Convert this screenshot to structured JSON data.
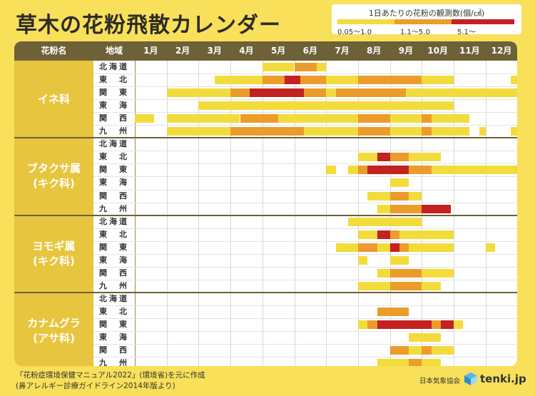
{
  "title": "草木の花粉飛散カレンダー",
  "legend": {
    "title": "1日あたりの花粉の観測数(個/㎠)",
    "levels": [
      {
        "label": "0.05～1.0",
        "color": "#f2dc3c"
      },
      {
        "label": "1.1～5.0",
        "color": "#eb9c2b"
      },
      {
        "label": "5.1～",
        "color": "#c42121"
      }
    ]
  },
  "headers": {
    "pollen": "花粉名",
    "region": "地域",
    "months": [
      "1月",
      "2月",
      "3月",
      "4月",
      "5月",
      "6月",
      "7月",
      "8月",
      "9月",
      "10月",
      "11月",
      "12月"
    ]
  },
  "footnote": {
    "line1": "「花粉症環境保健マニュアル2022」(環境省)を元に作成",
    "line2": "(鼻アレルギー診療ガイドライン2014年版より)"
  },
  "credit": {
    "org": "日本気象協会",
    "logo": "tenki.jp"
  },
  "chart_data": {
    "type": "table",
    "title": "草木の花粉飛散カレンダー",
    "x_unit": "月 (month index: 1 = start of January, 13 = end of December)",
    "levels": {
      "1": "0.05～1.0",
      "2": "1.1～5.0",
      "3": "5.1～"
    },
    "regions": [
      "北海道",
      "東　北",
      "関　東",
      "東　海",
      "関　西",
      "九　州"
    ],
    "groups": [
      {
        "name": [
          "イネ科"
        ],
        "rows": [
          {
            "region": "北海道",
            "segments": [
              [
                5.0,
                6.0,
                1
              ],
              [
                6.0,
                6.7,
                2
              ],
              [
                6.7,
                7.0,
                1
              ]
            ]
          },
          {
            "region": "東　北",
            "segments": [
              [
                3.5,
                5.0,
                1
              ],
              [
                5.0,
                5.7,
                2
              ],
              [
                5.7,
                6.2,
                3
              ],
              [
                6.2,
                7.0,
                2
              ],
              [
                7.0,
                8.0,
                1
              ],
              [
                8.0,
                10.0,
                2
              ],
              [
                10.0,
                11.0,
                1
              ],
              [
                12.8,
                13.0,
                1
              ]
            ]
          },
          {
            "region": "関　東",
            "segments": [
              [
                2.0,
                4.0,
                1
              ],
              [
                4.0,
                4.6,
                2
              ],
              [
                4.6,
                6.3,
                3
              ],
              [
                6.3,
                7.0,
                2
              ],
              [
                7.0,
                7.3,
                1
              ],
              [
                7.3,
                9.5,
                2
              ],
              [
                9.5,
                13.0,
                1
              ]
            ]
          },
          {
            "region": "東　海",
            "segments": [
              [
                3.0,
                11.0,
                1
              ]
            ]
          },
          {
            "region": "関　西",
            "segments": [
              [
                1.0,
                1.6,
                1
              ],
              [
                2.0,
                4.3,
                1
              ],
              [
                4.3,
                5.5,
                2
              ],
              [
                5.5,
                8.0,
                1
              ],
              [
                8.0,
                9.0,
                2
              ],
              [
                9.0,
                10.0,
                1
              ],
              [
                10.0,
                10.3,
                2
              ],
              [
                10.3,
                11.5,
                1
              ]
            ]
          },
          {
            "region": "九　州",
            "segments": [
              [
                2.0,
                4.0,
                1
              ],
              [
                4.0,
                6.3,
                2
              ],
              [
                6.3,
                8.0,
                1
              ],
              [
                8.0,
                9.0,
                2
              ],
              [
                9.0,
                10.0,
                1
              ],
              [
                10.0,
                10.3,
                2
              ],
              [
                10.3,
                11.5,
                1
              ],
              [
                11.8,
                12.0,
                1
              ],
              [
                12.8,
                13.0,
                1
              ]
            ]
          }
        ]
      },
      {
        "name": [
          "ブタクサ属",
          "(キク科)"
        ],
        "rows": [
          {
            "region": "北海道",
            "segments": []
          },
          {
            "region": "東　北",
            "segments": [
              [
                8.0,
                8.6,
                1
              ],
              [
                8.6,
                9.0,
                3
              ],
              [
                9.0,
                9.6,
                2
              ],
              [
                9.6,
                10.6,
                1
              ]
            ]
          },
          {
            "region": "関　東",
            "segments": [
              [
                7.0,
                7.3,
                1
              ],
              [
                7.7,
                8.0,
                1
              ],
              [
                8.0,
                8.3,
                2
              ],
              [
                8.3,
                9.6,
                3
              ],
              [
                9.6,
                10.3,
                2
              ],
              [
                10.3,
                13.0,
                1
              ]
            ]
          },
          {
            "region": "東　海",
            "segments": [
              [
                9.0,
                9.6,
                1
              ]
            ]
          },
          {
            "region": "関　西",
            "segments": [
              [
                8.3,
                8.6,
                1
              ],
              [
                8.6,
                9.0,
                1
              ],
              [
                9.0,
                9.6,
                2
              ],
              [
                9.6,
                10.0,
                1
              ]
            ]
          },
          {
            "region": "九　州",
            "segments": [
              [
                8.6,
                9.0,
                1
              ],
              [
                9.0,
                10.0,
                2
              ],
              [
                10.0,
                10.9,
                3
              ]
            ]
          }
        ]
      },
      {
        "name": [
          "ヨモギ属",
          "(キク科)"
        ],
        "rows": [
          {
            "region": "北海道",
            "segments": [
              [
                7.7,
                10.0,
                1
              ]
            ]
          },
          {
            "region": "東　北",
            "segments": [
              [
                8.0,
                8.6,
                1
              ],
              [
                8.6,
                9.0,
                3
              ],
              [
                9.0,
                9.3,
                2
              ],
              [
                9.3,
                10.0,
                1
              ],
              [
                10.0,
                11.0,
                1
              ]
            ]
          },
          {
            "region": "関　東",
            "segments": [
              [
                7.3,
                8.0,
                1
              ],
              [
                8.0,
                8.6,
                2
              ],
              [
                8.6,
                9.0,
                1
              ],
              [
                9.0,
                9.3,
                3
              ],
              [
                9.3,
                9.6,
                2
              ],
              [
                9.6,
                11.0,
                1
              ],
              [
                12.0,
                12.3,
                1
              ]
            ]
          },
          {
            "region": "東　海",
            "segments": [
              [
                8.0,
                8.3,
                1
              ],
              [
                9.0,
                9.6,
                1
              ]
            ]
          },
          {
            "region": "関　西",
            "segments": [
              [
                8.6,
                9.0,
                1
              ],
              [
                9.0,
                10.0,
                2
              ],
              [
                10.0,
                11.0,
                1
              ]
            ]
          },
          {
            "region": "九　州",
            "segments": [
              [
                8.0,
                9.0,
                1
              ],
              [
                9.0,
                10.0,
                2
              ],
              [
                10.0,
                10.6,
                1
              ]
            ]
          }
        ]
      },
      {
        "name": [
          "カナムグラ",
          "(アサ科)"
        ],
        "rows": [
          {
            "region": "北海道",
            "segments": []
          },
          {
            "region": "東　北",
            "segments": [
              [
                8.6,
                9.6,
                2
              ]
            ]
          },
          {
            "region": "関　東",
            "segments": [
              [
                8.0,
                8.3,
                1
              ],
              [
                8.3,
                8.6,
                2
              ],
              [
                8.6,
                10.3,
                3
              ],
              [
                10.3,
                10.6,
                2
              ],
              [
                10.6,
                11.0,
                3
              ],
              [
                11.0,
                11.3,
                1
              ]
            ]
          },
          {
            "region": "東　海",
            "segments": [
              [
                9.6,
                10.6,
                1
              ]
            ]
          },
          {
            "region": "関　西",
            "segments": [
              [
                9.0,
                9.6,
                2
              ],
              [
                9.6,
                10.0,
                1
              ],
              [
                10.0,
                10.3,
                2
              ],
              [
                10.3,
                11.0,
                1
              ]
            ]
          },
          {
            "region": "九　州",
            "segments": [
              [
                8.6,
                9.6,
                1
              ],
              [
                9.6,
                10.0,
                2
              ],
              [
                10.0,
                10.6,
                1
              ]
            ]
          }
        ]
      }
    ]
  }
}
